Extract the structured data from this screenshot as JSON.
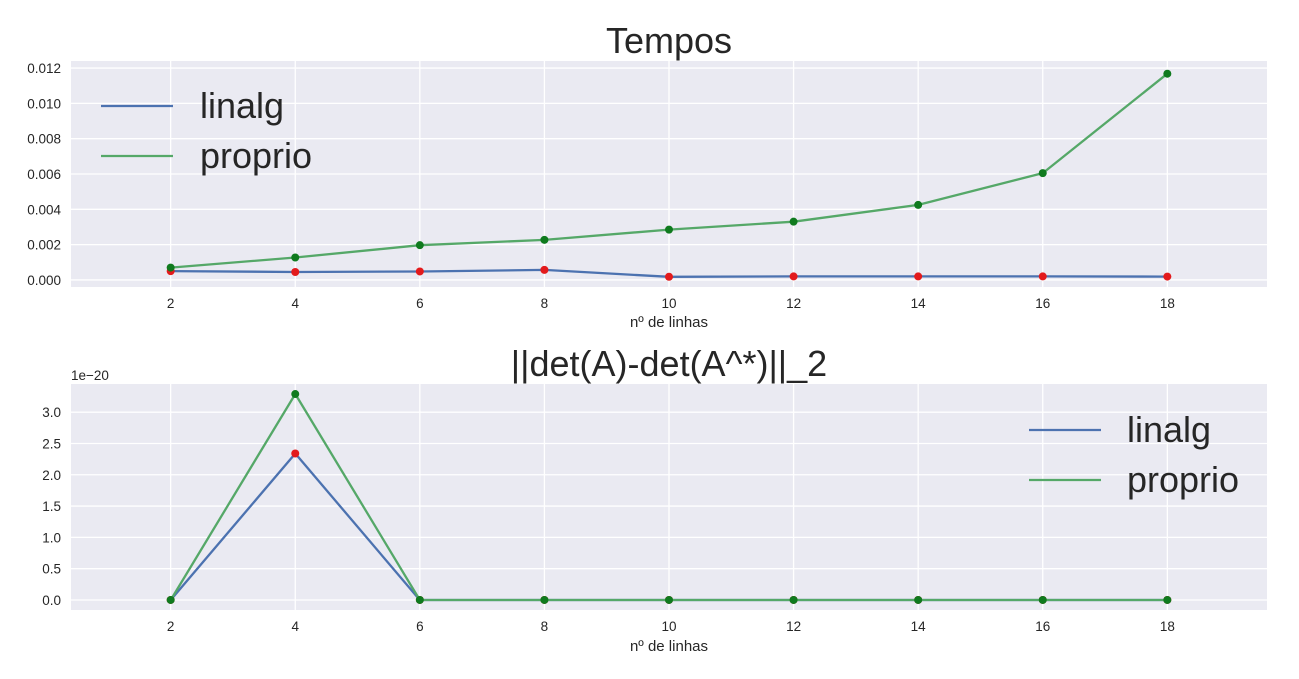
{
  "chart_data": [
    {
      "type": "line",
      "title": "Tempos",
      "xlabel": "nº de linhas",
      "ylabel": "",
      "x": [
        2,
        4,
        6,
        8,
        10,
        12,
        14,
        16,
        18
      ],
      "xticks": [
        "2",
        "4",
        "6",
        "8",
        "10",
        "12",
        "14",
        "16",
        "18"
      ],
      "xlim": [
        0.4,
        19.6
      ],
      "ylim": [
        -0.0004,
        0.0124
      ],
      "yticks": [
        0.0,
        0.002,
        0.004,
        0.006,
        0.008,
        0.01,
        0.012
      ],
      "ytick_labels": [
        "0.000",
        "0.002",
        "0.004",
        "0.006",
        "0.008",
        "0.010",
        "0.012"
      ],
      "y_offset_label": "",
      "grid": true,
      "legend_position": "upper-left",
      "series": [
        {
          "name": "linalg",
          "color": "#4c72b0",
          "marker_color": "#e31a1c",
          "values": [
            0.0005,
            0.00045,
            0.00048,
            0.00057,
            0.00018,
            0.0002,
            0.0002,
            0.0002,
            0.00019
          ]
        },
        {
          "name": "proprio",
          "color": "#55a868",
          "marker_color": "#0f7a1e",
          "values": [
            0.0007,
            0.00127,
            0.00197,
            0.00227,
            0.00285,
            0.0033,
            0.00425,
            0.00605,
            0.01168
          ]
        }
      ]
    },
    {
      "type": "line",
      "title": "||det(A)-det(A^*)||_2",
      "xlabel": "nº de linhas",
      "ylabel": "",
      "x": [
        2,
        4,
        6,
        8,
        10,
        12,
        14,
        16,
        18
      ],
      "xticks": [
        "2",
        "4",
        "6",
        "8",
        "10",
        "12",
        "14",
        "16",
        "18"
      ],
      "xlim": [
        0.4,
        19.6
      ],
      "ylim": [
        -0.16,
        3.45
      ],
      "yticks": [
        0.0,
        0.5,
        1.0,
        1.5,
        2.0,
        2.5,
        3.0
      ],
      "ytick_labels": [
        "0.0",
        "0.5",
        "1.0",
        "1.5",
        "2.0",
        "2.5",
        "3.0"
      ],
      "y_offset_label": "1e−20",
      "grid": true,
      "legend_position": "upper-right",
      "series": [
        {
          "name": "linalg",
          "color": "#4c72b0",
          "marker_color": "#e31a1c",
          "values": [
            0.0,
            2.34,
            0.0,
            0.0,
            0.0,
            0.0,
            0.0,
            0.0,
            0.0
          ]
        },
        {
          "name": "proprio",
          "color": "#55a868",
          "marker_color": "#0f7a1e",
          "values": [
            0.0,
            3.29,
            0.0,
            0.0,
            0.0,
            0.0,
            0.0,
            0.0,
            0.0
          ]
        }
      ]
    }
  ]
}
